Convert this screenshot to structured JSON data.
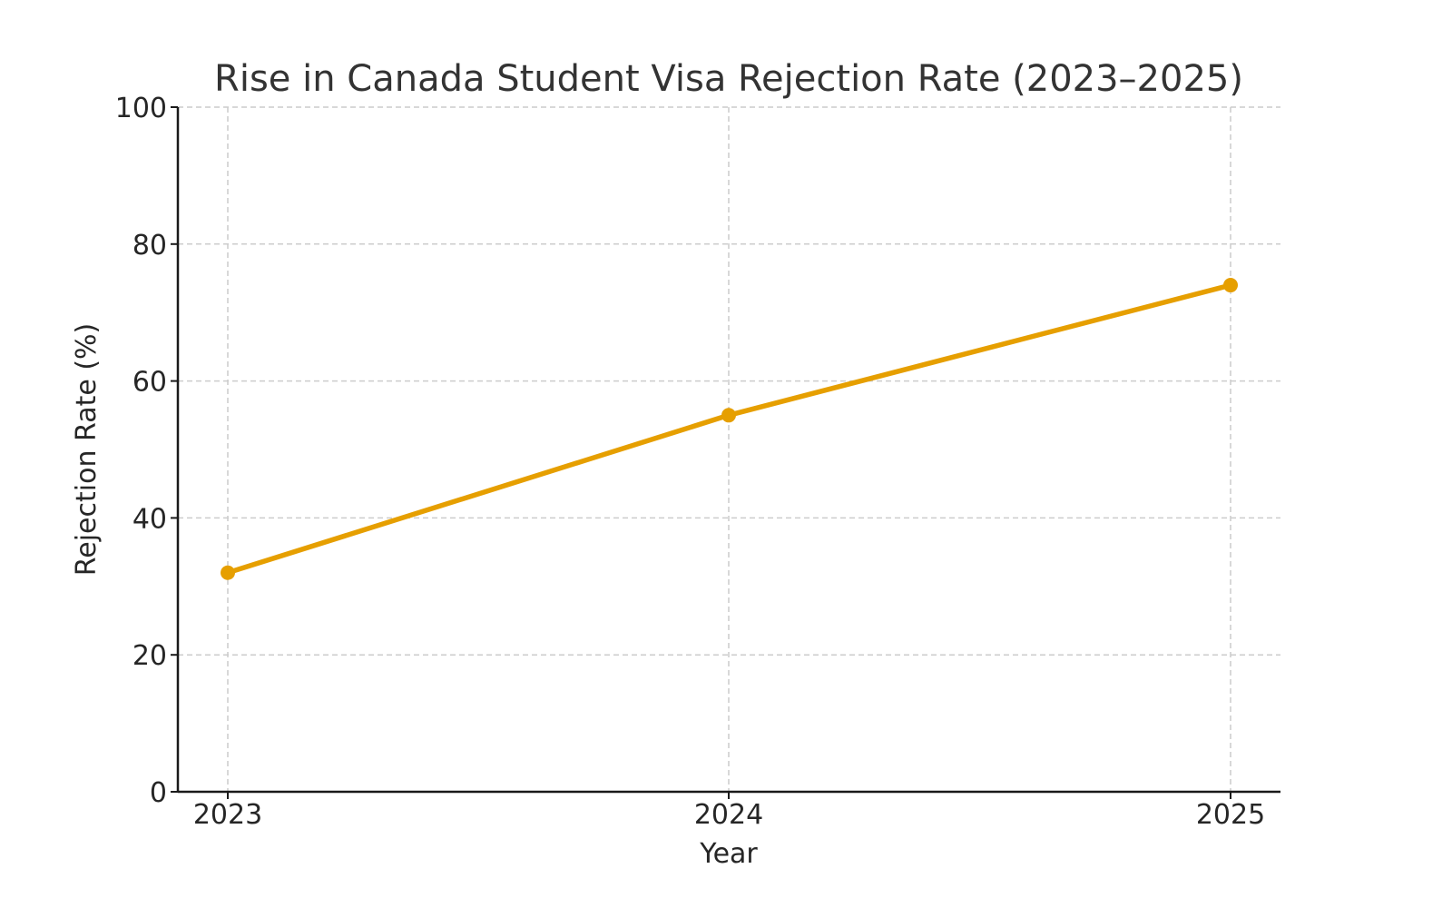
{
  "chart_data": {
    "type": "line",
    "title": "Rise in Canada Student Visa Rejection Rate (2023–2025)",
    "xlabel": "Year",
    "ylabel": "Rejection Rate (%)",
    "categories": [
      "2023",
      "2024",
      "2025"
    ],
    "series": [
      {
        "name": "Rejection Rate",
        "values": [
          32,
          55,
          74
        ],
        "color": "#E69F00",
        "marker": "circle"
      }
    ],
    "ylim": [
      0,
      100
    ],
    "yticks": [
      0,
      20,
      40,
      60,
      80,
      100
    ],
    "grid": true,
    "legend": null
  }
}
